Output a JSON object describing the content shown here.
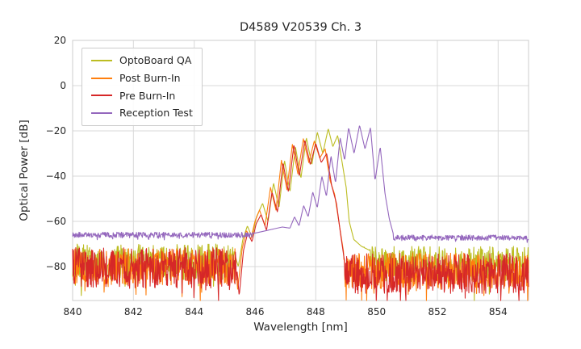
{
  "chart_data": {
    "type": "line",
    "title": "D4589 V20539 Ch. 3",
    "xlabel": "Wavelength [nm]",
    "ylabel": "Optical Power [dB]",
    "xlim": [
      840,
      855
    ],
    "ylim": [
      -95,
      20
    ],
    "xticks": [
      840,
      842,
      844,
      846,
      848,
      850,
      852,
      854
    ],
    "yticks": [
      20,
      0,
      -20,
      -40,
      -60,
      -80
    ],
    "grid": true,
    "grid_color": "#d9d9d9",
    "axis_color": "#cccccc",
    "text_color": "#262626",
    "background": "#ffffff",
    "legend_position": "upper left",
    "series": [
      {
        "name": "OptoBoard QA",
        "color": "#bcbd22",
        "noise_regions": [
          {
            "from": 840,
            "to": 845.3,
            "mean": -78,
            "amp": 8
          },
          {
            "from": 849.0,
            "to": 855,
            "mean": -79,
            "amp": 8
          }
        ],
        "curve_anchors": [
          [
            845.3,
            -73
          ],
          [
            845.45,
            -80
          ],
          [
            845.6,
            -68
          ],
          [
            845.75,
            -62
          ],
          [
            845.9,
            -67
          ],
          [
            846.05,
            -58
          ],
          [
            846.25,
            -52
          ],
          [
            846.43,
            -60
          ],
          [
            846.61,
            -43
          ],
          [
            846.79,
            -54
          ],
          [
            846.97,
            -33
          ],
          [
            847.15,
            -47
          ],
          [
            847.33,
            -27
          ],
          [
            847.51,
            -41
          ],
          [
            847.69,
            -23
          ],
          [
            847.87,
            -35
          ],
          [
            848.05,
            -20.5
          ],
          [
            848.23,
            -30
          ],
          [
            848.41,
            -19
          ],
          [
            848.56,
            -27
          ],
          [
            848.72,
            -22
          ],
          [
            848.88,
            -35
          ],
          [
            849.0,
            -45
          ],
          [
            849.1,
            -60
          ],
          [
            849.25,
            -68
          ],
          [
            849.5,
            -71
          ],
          [
            849.8,
            -73
          ]
        ]
      },
      {
        "name": "Post Burn-In",
        "color": "#ff7f0e",
        "noise_regions": [
          {
            "from": 840,
            "to": 845.35,
            "mean": -80,
            "amp": 8
          },
          {
            "from": 848.92,
            "to": 855,
            "mean": -82,
            "amp": 8
          }
        ],
        "curve_anchors": [
          [
            845.35,
            -78
          ],
          [
            845.43,
            -90
          ],
          [
            845.58,
            -72
          ],
          [
            845.72,
            -64
          ],
          [
            845.86,
            -68
          ],
          [
            846.0,
            -60
          ],
          [
            846.15,
            -55
          ],
          [
            846.33,
            -62
          ],
          [
            846.51,
            -45
          ],
          [
            846.69,
            -55
          ],
          [
            846.87,
            -33
          ],
          [
            847.05,
            -46
          ],
          [
            847.23,
            -26
          ],
          [
            847.41,
            -39
          ],
          [
            847.59,
            -23.5
          ],
          [
            847.77,
            -34
          ],
          [
            847.95,
            -24.5
          ],
          [
            848.13,
            -32
          ],
          [
            848.31,
            -28
          ],
          [
            848.47,
            -42
          ],
          [
            848.62,
            -48
          ],
          [
            848.78,
            -62
          ],
          [
            848.92,
            -74
          ]
        ]
      },
      {
        "name": "Pre Burn-In",
        "color": "#d62728",
        "noise_regions": [
          {
            "from": 840,
            "to": 845.4,
            "mean": -80.5,
            "amp": 9
          },
          {
            "from": 848.95,
            "to": 855,
            "mean": -83,
            "amp": 9
          }
        ],
        "curve_anchors": [
          [
            845.4,
            -80
          ],
          [
            845.48,
            -93
          ],
          [
            845.62,
            -73
          ],
          [
            845.76,
            -65
          ],
          [
            845.9,
            -69
          ],
          [
            846.04,
            -61
          ],
          [
            846.2,
            -57
          ],
          [
            846.38,
            -64
          ],
          [
            846.56,
            -47
          ],
          [
            846.74,
            -56
          ],
          [
            846.92,
            -34
          ],
          [
            847.1,
            -47
          ],
          [
            847.28,
            -26
          ],
          [
            847.46,
            -40
          ],
          [
            847.64,
            -24
          ],
          [
            847.82,
            -35
          ],
          [
            848.0,
            -25.5
          ],
          [
            848.18,
            -34
          ],
          [
            848.36,
            -30
          ],
          [
            848.52,
            -44
          ],
          [
            848.68,
            -52
          ],
          [
            848.82,
            -66
          ],
          [
            848.95,
            -78
          ]
        ]
      },
      {
        "name": "Reception Test",
        "color": "#9467bd",
        "noise_regions": [
          {
            "from": 840,
            "to": 845.95,
            "mean": -66,
            "amp": 1.2
          },
          {
            "from": 850.5,
            "to": 855,
            "mean": -67.2,
            "amp": 1.2
          }
        ],
        "curve_anchors": [
          [
            845.9,
            -65.5
          ],
          [
            846.4,
            -64
          ],
          [
            846.9,
            -62.5
          ],
          [
            847.15,
            -63
          ],
          [
            847.3,
            -58
          ],
          [
            847.45,
            -62
          ],
          [
            847.6,
            -53
          ],
          [
            847.75,
            -58
          ],
          [
            847.9,
            -47
          ],
          [
            848.05,
            -54
          ],
          [
            848.2,
            -40
          ],
          [
            848.35,
            -49
          ],
          [
            848.5,
            -31
          ],
          [
            848.65,
            -43
          ],
          [
            848.8,
            -23
          ],
          [
            848.95,
            -33
          ],
          [
            849.08,
            -18.5
          ],
          [
            849.26,
            -30
          ],
          [
            849.44,
            -17.5
          ],
          [
            849.62,
            -28
          ],
          [
            849.8,
            -18.5
          ],
          [
            849.95,
            -42
          ],
          [
            850.12,
            -27
          ],
          [
            850.28,
            -48
          ],
          [
            850.42,
            -59
          ],
          [
            850.55,
            -65.5
          ]
        ]
      }
    ]
  }
}
